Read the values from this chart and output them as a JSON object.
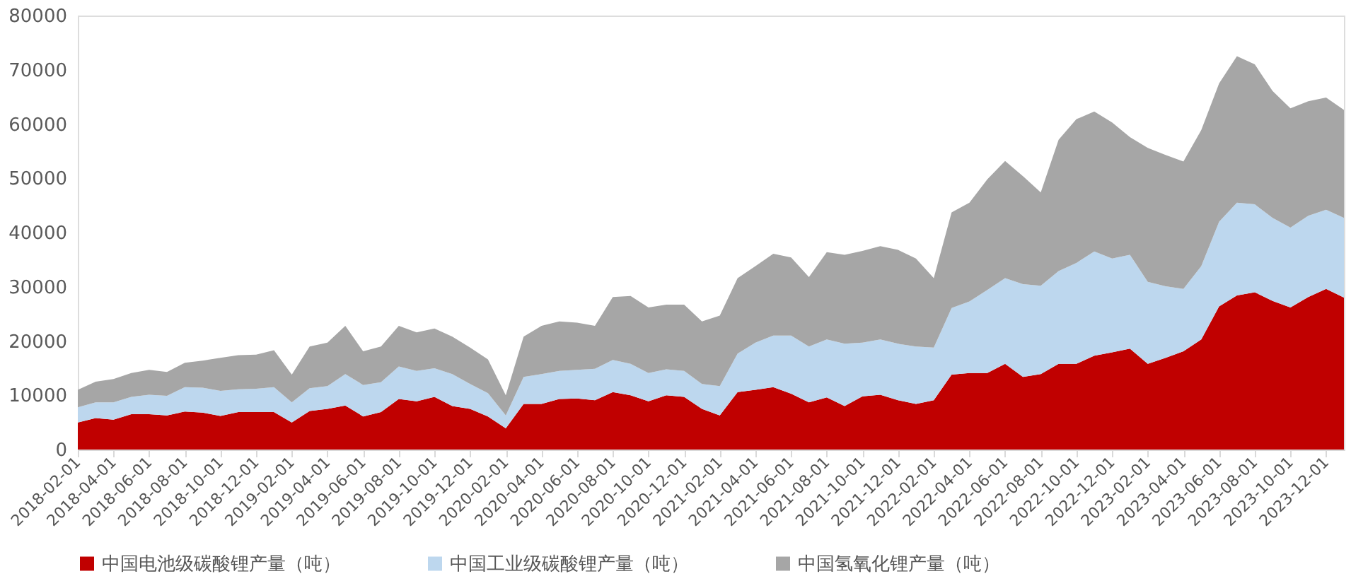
{
  "chart_data": {
    "type": "area",
    "stacked": true,
    "categories": [
      "2018-02-01",
      null,
      "2018-04-01",
      null,
      "2018-06-01",
      null,
      "2018-08-01",
      null,
      "2018-10-01",
      null,
      "2018-12-01",
      null,
      "2019-02-01",
      null,
      "2019-04-01",
      null,
      "2019-06-01",
      null,
      "2019-08-01",
      null,
      "2019-10-01",
      null,
      "2019-12-01",
      null,
      "2020-02-01",
      null,
      "2020-04-01",
      null,
      "2020-06-01",
      null,
      "2020-08-01",
      null,
      "2020-10-01",
      null,
      "2020-12-01",
      null,
      "2021-02-01",
      null,
      "2021-04-01",
      null,
      "2021-06-01",
      null,
      "2021-08-01",
      null,
      "2021-10-01",
      null,
      "2021-12-01",
      null,
      "2022-02-01",
      null,
      "2022-04-01",
      null,
      "2022-06-01",
      null,
      "2022-08-01",
      null,
      "2022-10-01",
      null,
      "2022-12-01",
      null,
      "2023-02-01",
      null,
      "2023-04-01",
      null,
      "2023-06-01",
      null,
      "2023-08-01",
      null,
      "2023-10-01",
      null,
      "2023-12-01",
      null
    ],
    "series": [
      {
        "name": "中国电池级碳酸锂产量（吨）",
        "color": "#c00000",
        "values": [
          5000,
          5800,
          5500,
          6500,
          6500,
          6300,
          7000,
          6800,
          6200,
          6900,
          6900,
          6900,
          5000,
          7100,
          7500,
          8100,
          6100,
          6900,
          9300,
          8900,
          9700,
          8000,
          7500,
          6100,
          3900,
          8400,
          8400,
          9300,
          9400,
          9100,
          10600,
          10000,
          8900,
          10000,
          9700,
          7500,
          6300,
          10600,
          11000,
          11500,
          10300,
          8700,
          9600,
          8000,
          9800,
          10100,
          9100,
          8400,
          9100,
          13800,
          14100,
          14100,
          15800,
          13400,
          13900,
          15800,
          15800,
          17300,
          17900,
          18600,
          15800,
          16900,
          18100,
          20300,
          26400,
          28400,
          29000,
          27400,
          26200,
          28100,
          29600,
          28000
        ]
      },
      {
        "name": "中国工业级碳酸锂产量（吨）",
        "color": "#bdd7ee",
        "values": [
          2800,
          2900,
          3200,
          3200,
          3600,
          3600,
          4500,
          4600,
          4600,
          4200,
          4300,
          4600,
          3700,
          4200,
          4200,
          5800,
          5800,
          5500,
          6000,
          5600,
          5300,
          5900,
          4600,
          4300,
          2400,
          5000,
          5500,
          5200,
          5300,
          5800,
          5900,
          5800,
          5200,
          4800,
          4800,
          4600,
          5400,
          7100,
          8700,
          9500,
          10700,
          10300,
          10700,
          11500,
          9900,
          10200,
          10400,
          10600,
          9700,
          12300,
          13200,
          15300,
          15800,
          17100,
          16300,
          17100,
          18600,
          19200,
          17300,
          17300,
          15100,
          13200,
          11500,
          13500,
          15600,
          17100,
          16200,
          15300,
          14700,
          15000,
          14600,
          14700
        ]
      },
      {
        "name": "中国氢氧化锂产量（吨）",
        "color": "#a6a6a6",
        "values": [
          3200,
          3800,
          4300,
          4400,
          4600,
          4400,
          4500,
          5000,
          6100,
          6300,
          6300,
          6800,
          5100,
          7700,
          8000,
          8900,
          6200,
          6600,
          7500,
          7100,
          7300,
          6900,
          6700,
          6200,
          3700,
          7400,
          8900,
          9100,
          8700,
          7900,
          11600,
          12500,
          12100,
          11900,
          12200,
          11500,
          13000,
          13900,
          14100,
          15100,
          14400,
          12800,
          16100,
          16400,
          16900,
          17200,
          17300,
          16200,
          12800,
          17600,
          18200,
          20400,
          21600,
          19900,
          17200,
          24200,
          26500,
          25800,
          25100,
          21700,
          24700,
          24200,
          23500,
          25100,
          25500,
          27000,
          25800,
          23400,
          22000,
          21100,
          20700,
          19900
        ]
      }
    ],
    "ylim": [
      0,
      80000
    ],
    "yticks": [
      0,
      10000,
      20000,
      30000,
      40000,
      50000,
      60000,
      70000,
      80000
    ],
    "grid": false,
    "legend": "bottom"
  }
}
